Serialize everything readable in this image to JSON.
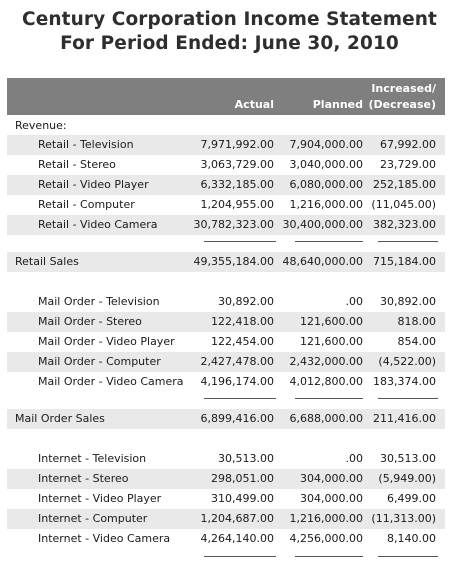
{
  "report": {
    "title_line1": "Century Corporation Income Statement",
    "title_line2": "For Period Ended: June 30, 2010"
  },
  "columns": {
    "actual": "Actual",
    "planned": "Planned",
    "variance_line1": "Increased/",
    "variance_line2": "(Decrease)"
  },
  "sections": {
    "revenue_label": "Revenue:"
  },
  "retail": {
    "rows": [
      {
        "label": "Retail - Television",
        "actual": "7,971,992.00",
        "planned": "7,904,000.00",
        "variance": "67,992.00"
      },
      {
        "label": "Retail - Stereo",
        "actual": "3,063,729.00",
        "planned": "3,040,000.00",
        "variance": "23,729.00"
      },
      {
        "label": "Retail - Video Player",
        "actual": "6,332,185.00",
        "planned": "6,080,000.00",
        "variance": "252,185.00"
      },
      {
        "label": "Retail - Computer",
        "actual": "1,204,955.00",
        "planned": "1,216,000.00",
        "variance": "(11,045.00)"
      },
      {
        "label": "Retail - Video Camera",
        "actual": "30,782,323.00",
        "planned": "30,400,000.00",
        "variance": "382,323.00"
      }
    ],
    "total": {
      "label": "Retail Sales",
      "actual": "49,355,184.00",
      "planned": "48,640,000.00",
      "variance": "715,184.00"
    }
  },
  "mail_order": {
    "rows": [
      {
        "label": "Mail Order - Television",
        "actual": "30,892.00",
        "planned": ".00",
        "variance": "30,892.00"
      },
      {
        "label": "Mail Order - Stereo",
        "actual": "122,418.00",
        "planned": "121,600.00",
        "variance": "818.00"
      },
      {
        "label": "Mail Order - Video Player",
        "actual": "122,454.00",
        "planned": "121,600.00",
        "variance": "854.00"
      },
      {
        "label": "Mail Order - Computer",
        "actual": "2,427,478.00",
        "planned": "2,432,000.00",
        "variance": "(4,522.00)"
      },
      {
        "label": "Mail Order - Video Camera",
        "actual": "4,196,174.00",
        "planned": "4,012,800.00",
        "variance": "183,374.00"
      }
    ],
    "total": {
      "label": "Mail Order Sales",
      "actual": "6,899,416.00",
      "planned": "6,688,000.00",
      "variance": "211,416.00"
    }
  },
  "internet": {
    "rows": [
      {
        "label": "Internet - Television",
        "actual": "30,513.00",
        "planned": ".00",
        "variance": "30,513.00"
      },
      {
        "label": "Internet - Stereo",
        "actual": "298,051.00",
        "planned": "304,000.00",
        "variance": "(5,949.00)"
      },
      {
        "label": "Internet - Video Player",
        "actual": "310,499.00",
        "planned": "304,000.00",
        "variance": "6,499.00"
      },
      {
        "label": "Internet - Computer",
        "actual": "1,204,687.00",
        "planned": "1,216,000.00",
        "variance": "(11,313.00)"
      },
      {
        "label": "Internet - Video Camera",
        "actual": "4,264,140.00",
        "planned": "4,256,000.00",
        "variance": "8,140.00"
      }
    ]
  }
}
